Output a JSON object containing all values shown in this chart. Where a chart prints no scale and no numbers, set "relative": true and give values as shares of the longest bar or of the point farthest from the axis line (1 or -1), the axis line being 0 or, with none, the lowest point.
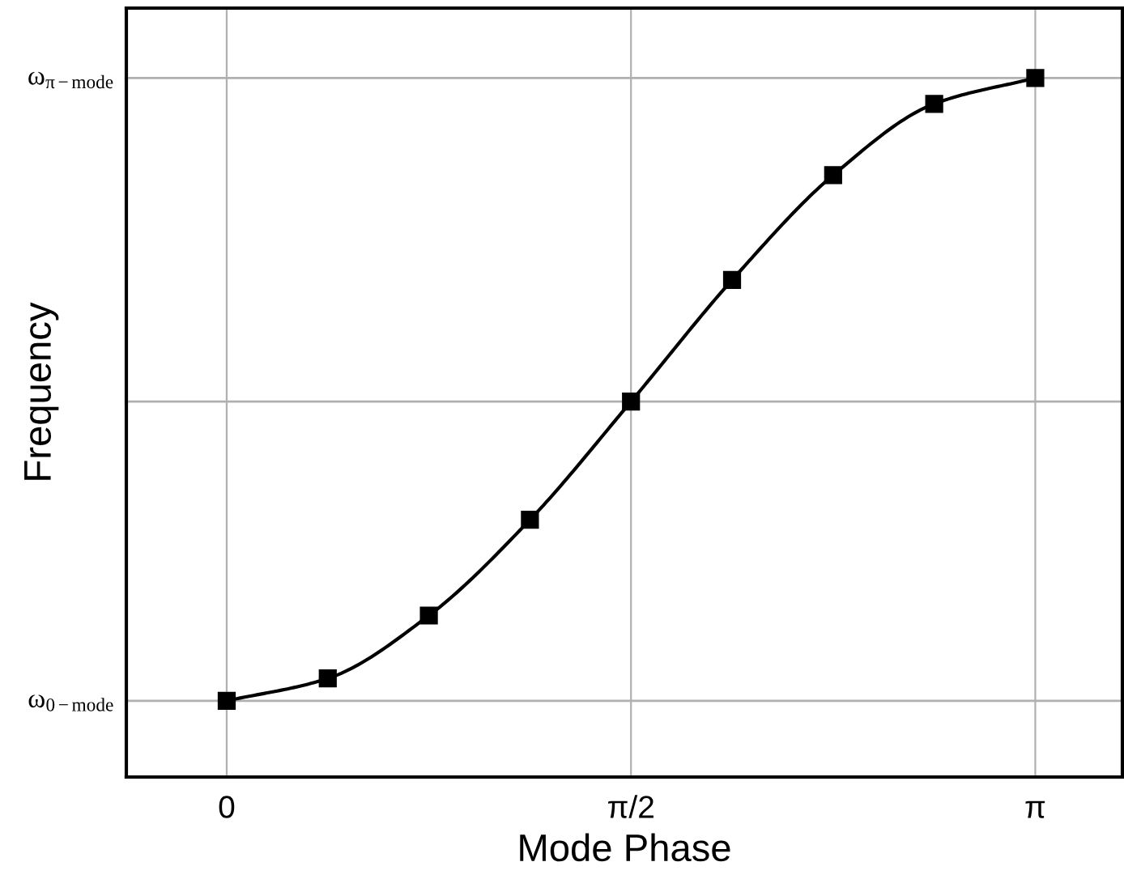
{
  "chart_data": {
    "type": "line",
    "xlabel": "Mode Phase",
    "ylabel": "Frequency",
    "relative": true,
    "x": [
      0,
      0.3927,
      0.7854,
      1.1781,
      1.5708,
      1.9635,
      2.3562,
      2.7489,
      3.1416
    ],
    "series": [
      {
        "color": "#000000",
        "values": [
          0.109,
          0.141,
          0.231,
          0.368,
          0.537,
          0.711,
          0.861,
          0.963,
          1.0
        ]
      }
    ],
    "xlim": [
      -0.39,
      3.48
    ],
    "xticks": [
      {
        "value": 0,
        "label": "0"
      },
      {
        "value": 1.5708,
        "label": "π/2"
      },
      {
        "value": 3.1416,
        "label": "π"
      }
    ],
    "ref_lines": [
      {
        "axis": "y",
        "value": 0.109,
        "label": "ω$_{0−mode}$",
        "color": "#b0b0b0"
      },
      {
        "axis": "y",
        "value": 0.537,
        "color": "#b0b0b0"
      },
      {
        "axis": "y",
        "value": 1,
        "label": "ω$_{π−mode}$",
        "color": "#b0b0b0"
      }
    ],
    "grid": "x",
    "marker": "square",
    "line_style": "solid"
  }
}
